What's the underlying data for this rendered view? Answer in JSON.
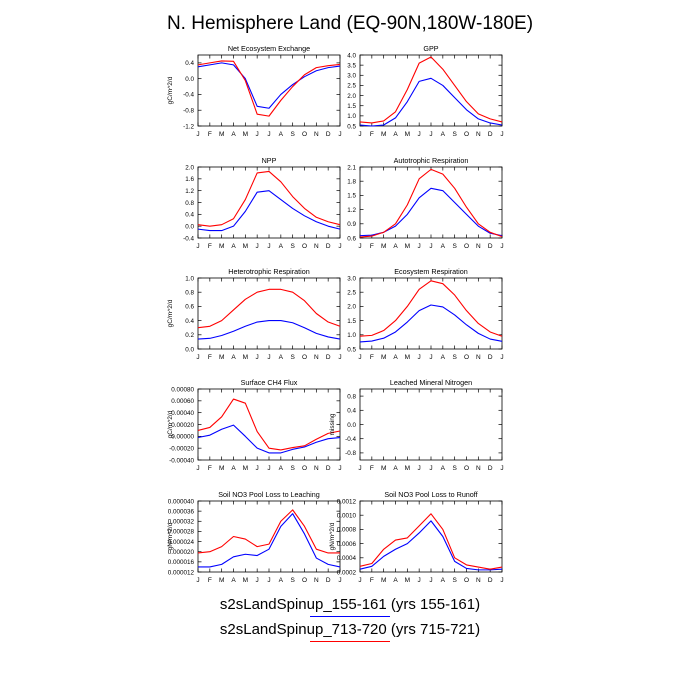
{
  "figure": {
    "title": "N. Hemisphere Land (EQ-90N,180W-180E)",
    "month_labels": [
      "J",
      "F",
      "M",
      "A",
      "M",
      "J",
      "J",
      "A",
      "S",
      "O",
      "N",
      "D",
      "J"
    ],
    "series_colors": {
      "case1": "#0000ff",
      "case2": "#ff0000"
    }
  },
  "legend": {
    "case1": "s2sLandSpinup_155-161 (yrs 155-161)",
    "case2": "s2sLandSpinup_713-720 (yrs 715-721)"
  },
  "chart_data": [
    {
      "type": "line",
      "title": "Net Ecosystem Exchange",
      "ylabel": "gC/m^2/d",
      "xlabel": "",
      "ylim": [
        -1.2,
        0.6
      ],
      "yticks": [
        0.4,
        0.0,
        -0.4,
        -0.8,
        -1.2
      ],
      "yticklabels": [
        "0.4",
        "0.0",
        "-0.4",
        "-0.8",
        "-1.2"
      ],
      "series": [
        {
          "name": "s2sLandSpinup_155-161",
          "color": "#0000ff",
          "values": [
            0.3,
            0.35,
            0.4,
            0.35,
            0.0,
            -0.7,
            -0.75,
            -0.4,
            -0.15,
            0.05,
            0.2,
            0.28,
            0.32
          ]
        },
        {
          "name": "s2sLandSpinup_713-720",
          "color": "#ff0000",
          "values": [
            0.35,
            0.4,
            0.45,
            0.44,
            -0.05,
            -0.9,
            -0.95,
            -0.55,
            -0.2,
            0.1,
            0.28,
            0.33,
            0.36
          ]
        }
      ]
    },
    {
      "type": "line",
      "title": "GPP",
      "ylabel": "",
      "xlabel": "",
      "ylim": [
        0.5,
        4.0
      ],
      "yticks": [
        4.0,
        3.5,
        3.0,
        2.5,
        2.0,
        1.5,
        1.0,
        0.5
      ],
      "yticklabels": [
        "4.0",
        "3.5",
        "3.0",
        "2.5",
        "2.0",
        "1.5",
        "1.0",
        "0.5"
      ],
      "series": [
        {
          "name": "s2sLandSpinup_155-161",
          "color": "#0000ff",
          "values": [
            0.55,
            0.5,
            0.55,
            0.9,
            1.7,
            2.7,
            2.85,
            2.5,
            1.9,
            1.3,
            0.85,
            0.65,
            0.55
          ]
        },
        {
          "name": "s2sLandSpinup_713-720",
          "color": "#ff0000",
          "values": [
            0.7,
            0.65,
            0.75,
            1.2,
            2.3,
            3.6,
            3.9,
            3.3,
            2.5,
            1.7,
            1.1,
            0.85,
            0.7
          ]
        }
      ]
    },
    {
      "type": "line",
      "title": "NPP",
      "ylabel": "",
      "xlabel": "",
      "ylim": [
        -0.4,
        2.0
      ],
      "yticks": [
        2.0,
        1.6,
        1.2,
        0.8,
        0.4,
        0.0,
        -0.4
      ],
      "yticklabels": [
        "2.0",
        "1.6",
        "1.2",
        "0.8",
        "0.4",
        "0.0",
        "-0.4"
      ],
      "series": [
        {
          "name": "s2sLandSpinup_155-161",
          "color": "#0000ff",
          "values": [
            -0.1,
            -0.15,
            -0.15,
            0.0,
            0.5,
            1.15,
            1.2,
            0.9,
            0.6,
            0.35,
            0.15,
            0.0,
            -0.1
          ]
        },
        {
          "name": "s2sLandSpinup_713-720",
          "color": "#ff0000",
          "values": [
            0.05,
            0.0,
            0.05,
            0.25,
            0.9,
            1.8,
            1.85,
            1.5,
            1.0,
            0.6,
            0.3,
            0.15,
            0.05
          ]
        }
      ]
    },
    {
      "type": "line",
      "title": "Autotrophic Respiration",
      "ylabel": "",
      "xlabel": "",
      "ylim": [
        0.6,
        2.1
      ],
      "yticks": [
        2.1,
        1.8,
        1.5,
        1.2,
        0.9,
        0.6
      ],
      "yticklabels": [
        "2.1",
        "1.8",
        "1.5",
        "1.2",
        "0.9",
        "0.6"
      ],
      "series": [
        {
          "name": "s2sLandSpinup_155-161",
          "color": "#0000ff",
          "values": [
            0.65,
            0.66,
            0.72,
            0.85,
            1.1,
            1.45,
            1.65,
            1.6,
            1.35,
            1.1,
            0.85,
            0.7,
            0.65
          ]
        },
        {
          "name": "s2sLandSpinup_713-720",
          "color": "#ff0000",
          "values": [
            0.62,
            0.64,
            0.72,
            0.9,
            1.3,
            1.85,
            2.05,
            1.95,
            1.65,
            1.25,
            0.9,
            0.72,
            0.63
          ]
        }
      ]
    },
    {
      "type": "line",
      "title": "Heterotrophic Respiration",
      "ylabel": "gC/m^2/d",
      "xlabel": "",
      "ylim": [
        0.0,
        1.0
      ],
      "yticks": [
        1.0,
        0.8,
        0.6,
        0.4,
        0.2,
        0.0
      ],
      "yticklabels": [
        "1.0",
        "0.8",
        "0.6",
        "0.4",
        "0.2",
        "0.0"
      ],
      "series": [
        {
          "name": "s2sLandSpinup_155-161",
          "color": "#0000ff",
          "values": [
            0.14,
            0.15,
            0.19,
            0.25,
            0.32,
            0.38,
            0.4,
            0.4,
            0.37,
            0.3,
            0.22,
            0.17,
            0.14
          ]
        },
        {
          "name": "s2sLandSpinup_713-720",
          "color": "#ff0000",
          "values": [
            0.3,
            0.32,
            0.4,
            0.55,
            0.7,
            0.8,
            0.84,
            0.84,
            0.8,
            0.68,
            0.5,
            0.38,
            0.32
          ]
        }
      ]
    },
    {
      "type": "line",
      "title": "Ecosystem Respiration",
      "ylabel": "",
      "xlabel": "",
      "ylim": [
        0.5,
        3.0
      ],
      "yticks": [
        3.0,
        2.5,
        2.0,
        1.5,
        1.0,
        0.5
      ],
      "yticklabels": [
        "3.0",
        "2.5",
        "2.0",
        "1.5",
        "1.0",
        "0.5"
      ],
      "series": [
        {
          "name": "s2sLandSpinup_155-161",
          "color": "#0000ff",
          "values": [
            0.75,
            0.78,
            0.88,
            1.1,
            1.45,
            1.85,
            2.05,
            1.98,
            1.7,
            1.35,
            1.05,
            0.85,
            0.77
          ]
        },
        {
          "name": "s2sLandSpinup_713-720",
          "color": "#ff0000",
          "values": [
            0.95,
            0.98,
            1.15,
            1.5,
            2.0,
            2.6,
            2.9,
            2.8,
            2.4,
            1.85,
            1.4,
            1.1,
            0.95
          ]
        }
      ]
    },
    {
      "type": "line",
      "title": "Surface CH4 Flux",
      "ylabel": "gC/m^2/d",
      "xlabel": "",
      "ylim": [
        -0.0004,
        0.0008
      ],
      "yticks": [
        0.0008,
        0.0006,
        0.0004,
        0.0002,
        0.0,
        -0.0002,
        -0.0004
      ],
      "yticklabels": [
        "0.00080",
        "0.00060",
        "0.00040",
        "0.00020",
        "0.00000",
        "-0.00020",
        "-0.00040"
      ],
      "series": [
        {
          "name": "s2sLandSpinup_155-161",
          "color": "#0000ff",
          "values": [
            -2e-05,
            2e-05,
            0.00012,
            0.00019,
            0.0,
            -0.0002,
            -0.00028,
            -0.00028,
            -0.00022,
            -0.00018,
            -0.0001,
            -4e-05,
            -2e-05
          ]
        },
        {
          "name": "s2sLandSpinup_713-720",
          "color": "#ff0000",
          "values": [
            0.0001,
            0.00015,
            0.00033,
            0.00063,
            0.00056,
            8e-05,
            -0.0002,
            -0.00023,
            -0.00019,
            -0.00016,
            -5e-05,
            5e-05,
            9e-05
          ]
        }
      ]
    },
    {
      "type": "line",
      "title": "Leached Mineral Nitrogen",
      "ylabel": "missing",
      "xlabel": "",
      "ylim": [
        -1.0,
        1.0
      ],
      "yticks": [
        0.8,
        0.4,
        0.0,
        -0.4,
        -0.8
      ],
      "yticklabels": [
        "0.8",
        "0.4",
        "0.0",
        "-0.4",
        "-0.8"
      ],
      "series": []
    },
    {
      "type": "line",
      "title": "Soil NO3 Pool Loss to Leaching",
      "ylabel": "gN/m^2/d",
      "xlabel": "",
      "ylim": [
        1.2e-05,
        4e-05
      ],
      "yticks": [
        4e-05,
        3.6e-05,
        3.2e-05,
        2.8e-05,
        2.4e-05,
        2e-05,
        1.6e-05,
        1.2e-05
      ],
      "yticklabels": [
        "0.000040",
        "0.000036",
        "0.000032",
        "0.000028",
        "0.000024",
        "0.000020",
        "0.000016",
        "0.000012"
      ],
      "series": [
        {
          "name": "s2sLandSpinup_155-161",
          "color": "#0000ff",
          "values": [
            1.4e-05,
            1.4e-05,
            1.5e-05,
            1.8e-05,
            1.9e-05,
            1.85e-05,
            2.1e-05,
            3e-05,
            3.5e-05,
            2.7e-05,
            1.75e-05,
            1.5e-05,
            1.4e-05
          ]
        },
        {
          "name": "s2sLandSpinup_713-720",
          "color": "#ff0000",
          "values": [
            1.95e-05,
            2e-05,
            2.2e-05,
            2.6e-05,
            2.5e-05,
            2.2e-05,
            2.3e-05,
            3.2e-05,
            3.65e-05,
            3e-05,
            2.1e-05,
            1.95e-05,
            1.95e-05
          ]
        }
      ]
    },
    {
      "type": "line",
      "title": "Soil NO3 Pool Loss to Runoff",
      "ylabel": "gN/m^2/d",
      "xlabel": "",
      "ylim": [
        0.0002,
        0.0012
      ],
      "yticks": [
        0.0012,
        0.001,
        0.0008,
        0.0006,
        0.0004,
        0.0002
      ],
      "yticklabels": [
        "0.0012",
        "0.0010",
        "0.0008",
        "0.0006",
        "0.0004",
        "0.0002"
      ],
      "series": [
        {
          "name": "s2sLandSpinup_155-161",
          "color": "#0000ff",
          "values": [
            0.00024,
            0.00028,
            0.00042,
            0.00052,
            0.0006,
            0.00075,
            0.00092,
            0.0007,
            0.00035,
            0.00025,
            0.00023,
            0.00023,
            0.00024
          ]
        },
        {
          "name": "s2sLandSpinup_713-720",
          "color": "#ff0000",
          "values": [
            0.00028,
            0.00032,
            0.00052,
            0.00065,
            0.00068,
            0.00085,
            0.00102,
            0.0008,
            0.0004,
            0.0003,
            0.00027,
            0.00024,
            0.00027
          ]
        }
      ]
    }
  ]
}
